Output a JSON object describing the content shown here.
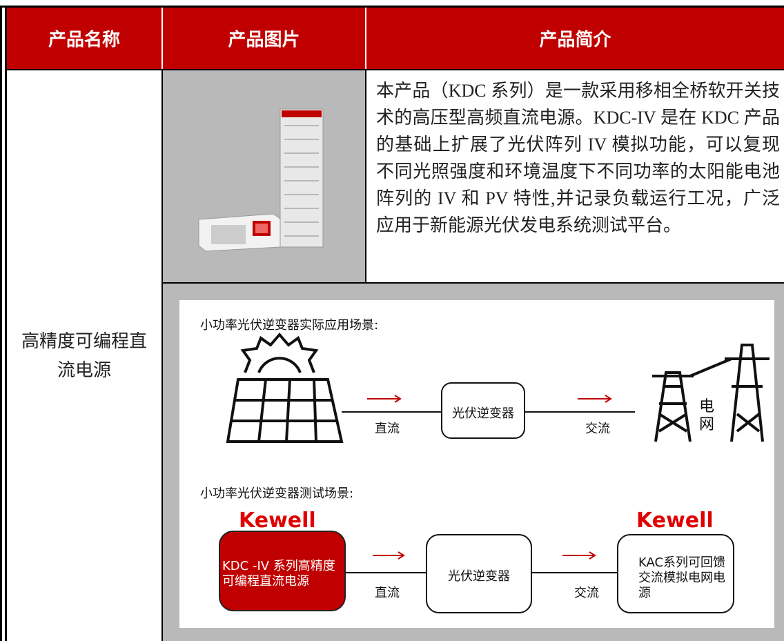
{
  "table": {
    "headers": [
      "产品名称",
      "产品图片",
      "产品简介"
    ],
    "rows": [
      {
        "name": "高精度可编程直流电源",
        "description": "本产品（KDC 系列）是一款采用移相全桥软开关技术的高压型高频直流电源。KDC-IV 是在 KDC 产品的基础上扩展了光伏阵列 IV 模拟功能，可以复现不同光照强度和环境温度下不同功率的太阳能电池阵列的 IV 和 PV 特性,并记录负载运行工况，广泛应用于新能源光伏发电系统测试平台。"
      }
    ]
  },
  "diagram": {
    "scene1_title": "小功率光伏逆变器实际应用场景:",
    "dc_label_1": "直流",
    "inverter_1": "光伏逆变器",
    "ac_label_1": "交流",
    "grid_char_1": "电",
    "grid_char_2": "网",
    "scene2_title": "小功率光伏逆变器测试场景:",
    "brand_1": "Kewell",
    "brand_2": "Kewell",
    "source_box": "KDC -IV 系列高精度可编程直流电源",
    "inverter_2": "光伏逆变器",
    "dc_label_2": "直流",
    "ac_label_2": "交流",
    "grid_box": "KAC系列可回馈交流模拟电网电源"
  }
}
